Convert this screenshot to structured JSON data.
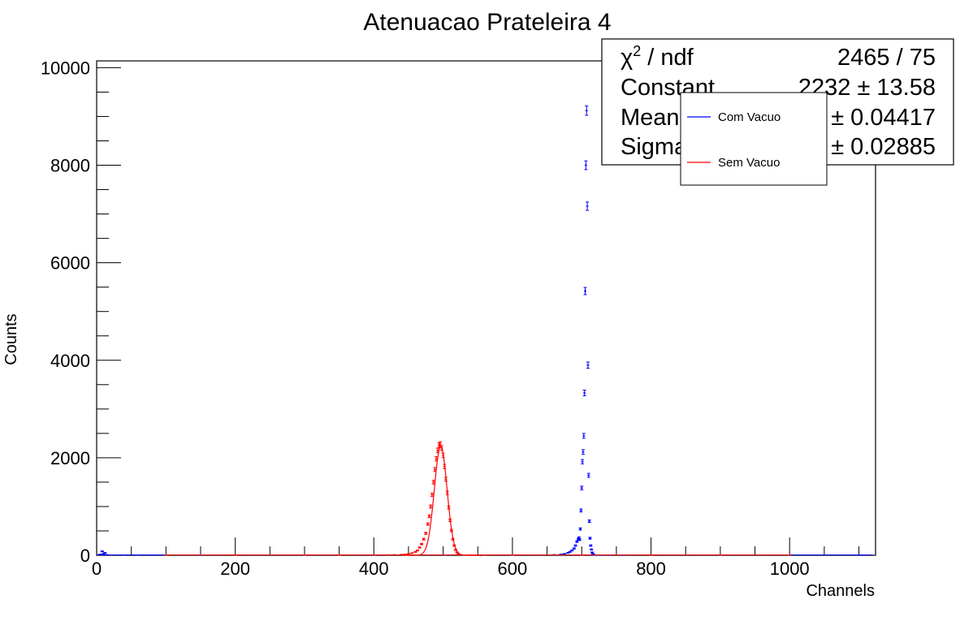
{
  "chart_data": {
    "type": "scatter",
    "title": "Atenuacao Prateleira 4",
    "xlabel": "Channels",
    "ylabel": "Counts",
    "xlim": [
      0,
      1124
    ],
    "ylim": [
      0,
      10140
    ],
    "grid": false,
    "x_ticks": [
      0,
      200,
      400,
      600,
      800,
      1000
    ],
    "y_ticks": [
      0,
      2000,
      4000,
      6000,
      8000,
      10000
    ],
    "stats_box": {
      "rows": [
        {
          "label_main": "χ",
          "label_sup": "2",
          "label_rest": " / ndf",
          "value": "2465 / 75"
        },
        {
          "label_main": "Constant",
          "label_sup": "",
          "label_rest": "",
          "value": "2232 ± 13.58"
        },
        {
          "label_main": "Mean",
          "label_sup": "",
          "label_rest": "",
          "value": "496.5 ± 0.04417"
        },
        {
          "label_main": "Sigma",
          "label_sup": "",
          "label_rest": "",
          "value": "9.2 ± 0.02885"
        }
      ]
    },
    "legend": {
      "placement": "top-right",
      "entries": [
        {
          "name": "Com Vacuo",
          "color": "#0000ff"
        },
        {
          "name": "Sem Vacuo",
          "color": "#ff0000"
        }
      ]
    },
    "series": [
      {
        "name": "Com Vacuo",
        "color": "#0000ff",
        "x": [
          5,
          8,
          10,
          12,
          15,
          20,
          40,
          60,
          80,
          100,
          150,
          200,
          300,
          400,
          500,
          600,
          640,
          660,
          670,
          675,
          680,
          683,
          686,
          689,
          691,
          693,
          695,
          696,
          697,
          698,
          699,
          700,
          701,
          702,
          703,
          704,
          705,
          706,
          707,
          708,
          709,
          710,
          711,
          712,
          713,
          714,
          715,
          716,
          717,
          718,
          720,
          722,
          725,
          730,
          740,
          760,
          800,
          900,
          1000,
          1100
        ],
        "y": [
          20,
          80,
          30,
          50,
          10,
          5,
          3,
          2,
          2,
          2,
          1,
          1,
          1,
          1,
          1,
          3,
          6,
          10,
          20,
          30,
          50,
          70,
          100,
          140,
          200,
          280,
          330,
          360,
          320,
          540,
          920,
          1380,
          1920,
          2120,
          2450,
          3330,
          5420,
          8000,
          9120,
          7160,
          3900,
          1640,
          700,
          350,
          200,
          120,
          60,
          30,
          15,
          8,
          5,
          3,
          2,
          1,
          1,
          1,
          1,
          1,
          1,
          1
        ]
      },
      {
        "name": "Sem Vacuo",
        "color": "#ff0000",
        "x": [
          100,
          200,
          300,
          350,
          400,
          420,
          430,
          440,
          445,
          450,
          455,
          460,
          463,
          466,
          469,
          472,
          475,
          478,
          480,
          482,
          484,
          486,
          488,
          490,
          492,
          494,
          496,
          498,
          500,
          502,
          504,
          506,
          508,
          510,
          512,
          514,
          516,
          518,
          520,
          522,
          525,
          530,
          540,
          560,
          600,
          700,
          800,
          900,
          1000
        ],
        "y": [
          1,
          1,
          2,
          3,
          5,
          8,
          10,
          15,
          20,
          28,
          45,
          70,
          100,
          160,
          230,
          330,
          450,
          640,
          800,
          1000,
          1240,
          1500,
          1760,
          1980,
          2150,
          2260,
          2280,
          2200,
          2050,
          1820,
          1560,
          1280,
          980,
          720,
          510,
          330,
          200,
          110,
          60,
          30,
          12,
          5,
          2,
          1,
          1,
          1,
          1,
          1,
          1
        ]
      }
    ],
    "fit": {
      "name": "Gaussian fit",
      "color": "#ff0000",
      "constant": 2232,
      "mean": 496.5,
      "sigma": 9.2
    }
  }
}
